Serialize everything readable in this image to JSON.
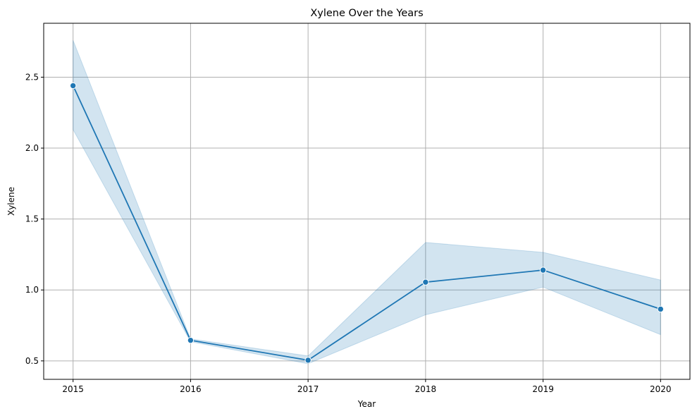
{
  "chart_data": {
    "type": "line",
    "title": "Xylene Over the Years",
    "xlabel": "Year",
    "ylabel": "Xylene",
    "x": [
      2015,
      2016,
      2017,
      2018,
      2019,
      2020
    ],
    "x_tick_labels": [
      "2015",
      "2016",
      "2017",
      "2018",
      "2019",
      "2020"
    ],
    "y_ticks": [
      0.5,
      1.0,
      1.5,
      2.0,
      2.5
    ],
    "y_tick_labels": [
      "0.5",
      "1.0",
      "1.5",
      "2.0",
      "2.5"
    ],
    "xlim": [
      2014.75,
      2020.25
    ],
    "ylim": [
      0.37,
      2.88
    ],
    "grid": true,
    "series": [
      {
        "values": [
          2.44,
          0.645,
          0.505,
          1.055,
          1.14,
          0.865
        ],
        "ci_upper": [
          2.76,
          0.655,
          0.535,
          1.335,
          1.265,
          1.07
        ],
        "ci_lower": [
          2.13,
          0.635,
          0.48,
          0.825,
          1.02,
          0.685
        ],
        "color": "#1f77b4",
        "band_color": "#1f77b4",
        "marker": "circle"
      }
    ]
  }
}
